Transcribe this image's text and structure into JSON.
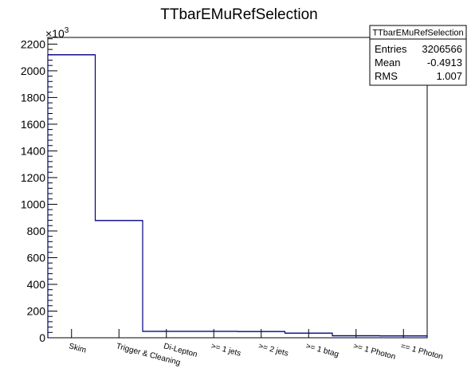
{
  "chart_data": {
    "type": "bar",
    "title": "TTbarEMuRefSelection",
    "xlabel": "",
    "ylabel": "",
    "y_exponent_label": "×10",
    "y_exponent_power": "3",
    "ylim": [
      0,
      2250
    ],
    "yticks": [
      "0",
      "200",
      "400",
      "600",
      "800",
      "1000",
      "1200",
      "1400",
      "1600",
      "1800",
      "2000",
      "2200"
    ],
    "categories": [
      "Skim",
      "Trigger & Cleaning",
      "Di-Lepton",
      ">= 1 jets",
      ">= 2 jets",
      ">= 1 btag",
      ">= 1 Photon",
      "== 1 Photon"
    ],
    "values": [
      2120,
      878,
      48,
      48,
      47,
      35,
      15,
      14
    ],
    "line_color": "#000080",
    "grid": false,
    "legend_position": "top-right",
    "stats": {
      "title": "TTbarEMuRefSelection",
      "rows": [
        {
          "label": "Entries",
          "value": "3206566"
        },
        {
          "label": "Mean",
          "value": "-0.4913"
        },
        {
          "label": "RMS",
          "value": "1.007"
        }
      ]
    }
  }
}
